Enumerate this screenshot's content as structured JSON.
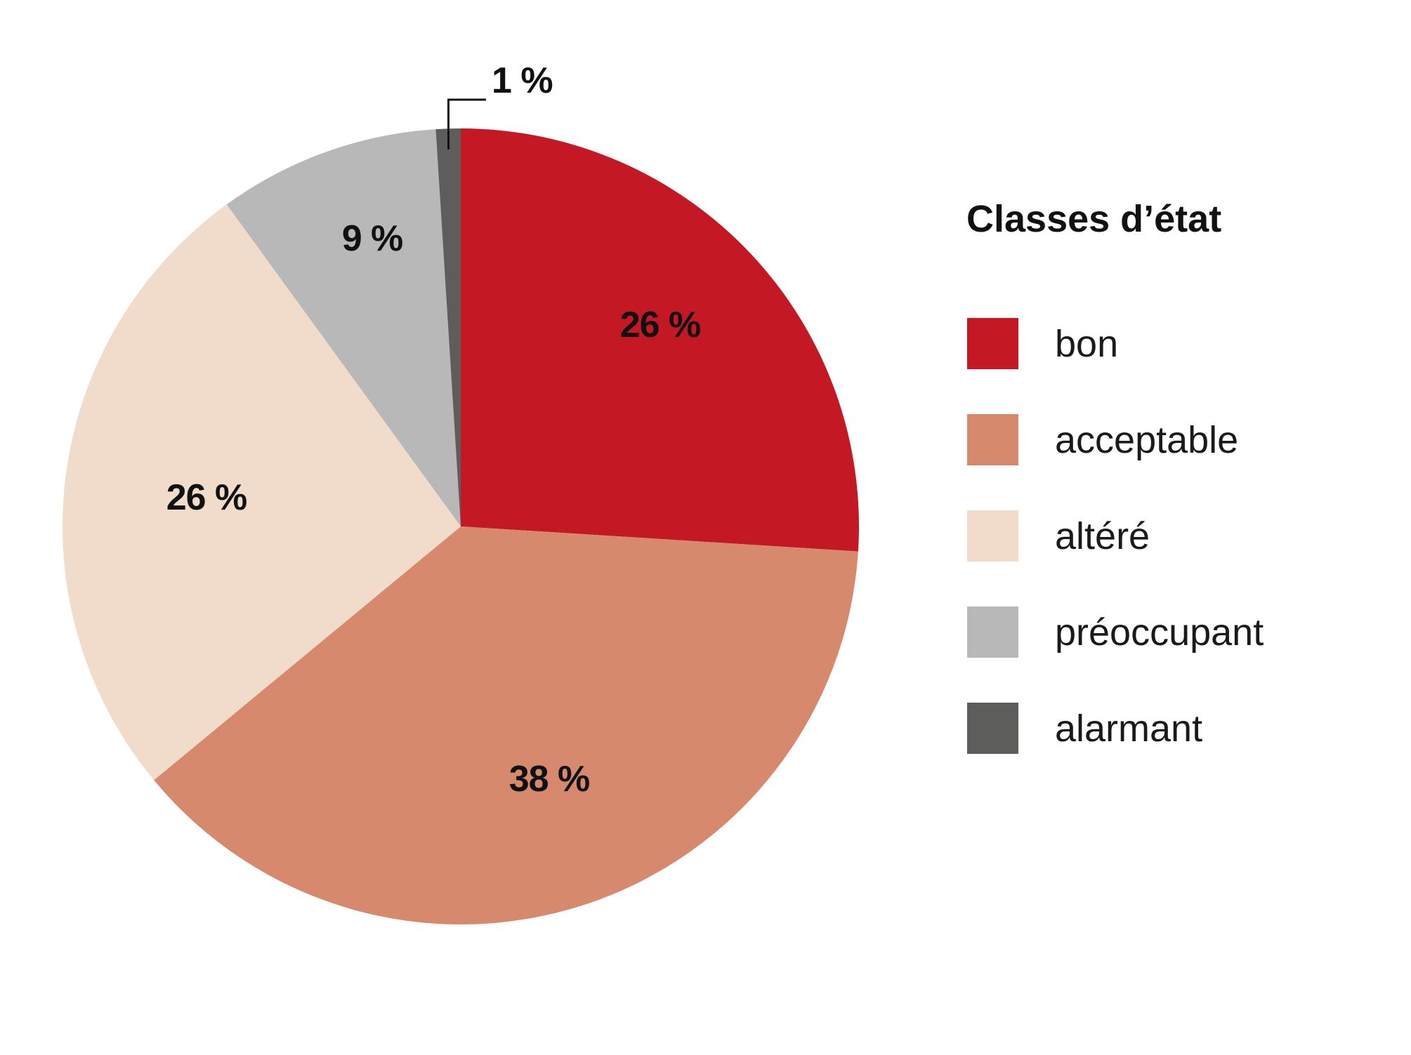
{
  "chart_data": {
    "type": "pie",
    "title": "",
    "legend": {
      "title": "Classes d’état",
      "placement": "right"
    },
    "slices": [
      {
        "name": "bon",
        "value": 26,
        "label": "26 %",
        "color": "#c41824"
      },
      {
        "name": "acceptable",
        "value": 38,
        "label": "38 %",
        "color": "#d6896d"
      },
      {
        "name": "altéré",
        "value": 26,
        "label": "26 %",
        "color": "#f1dccc"
      },
      {
        "name": "préoccupant",
        "value": 9,
        "label": "9 %",
        "color": "#b8b8b8"
      },
      {
        "name": "alarmant",
        "value": 1,
        "label": "1 %",
        "color": "#5d5d5c"
      }
    ]
  }
}
